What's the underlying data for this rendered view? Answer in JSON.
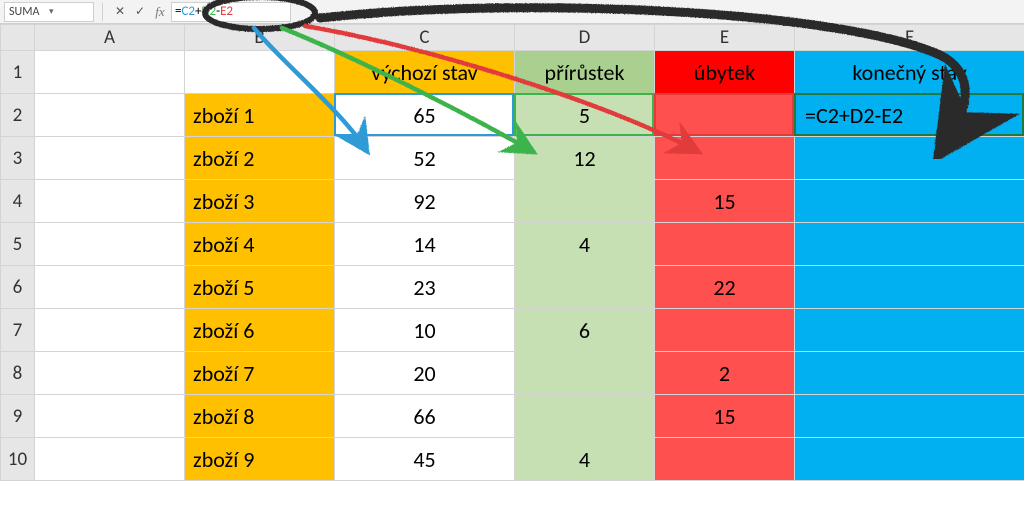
{
  "formula_bar": {
    "name_box": "SUMA",
    "cancel_icon": "✕",
    "enter_icon": "✓",
    "fx_label": "fx",
    "formula": "=C2+D2-E2",
    "tokens": {
      "eq": "=",
      "c2": "C2",
      "plus": "+",
      "d2": "D2",
      "minus": "-",
      "e2": "E2"
    }
  },
  "colors": {
    "header_orange": "#ffc000",
    "header_green": "#a9d08e",
    "header_red": "#ff0000",
    "header_cyan": "#00b0f0",
    "data_orange": "#ffc000",
    "data_green": "#c6e0b4",
    "data_red": "#ff5050",
    "data_cyan": "#00b0f0",
    "ref_blue": "#2e9bd6",
    "ref_green": "#3cb44b",
    "ref_red": "#e23b3b",
    "chalk_black": "#2b2b2b"
  },
  "columns": [
    "A",
    "B",
    "C",
    "D",
    "E",
    "F"
  ],
  "headers": {
    "C": "výchozí stav",
    "D": "přírůstek",
    "E": "úbytek",
    "F": "konečný stav"
  },
  "rows": [
    {
      "n": 1
    },
    {
      "n": 2,
      "B": "zboží 1",
      "C": "65",
      "D": "5",
      "E": "",
      "F": "=C2+D2-E2"
    },
    {
      "n": 3,
      "B": "zboží 2",
      "C": "52",
      "D": "12",
      "E": "",
      "F": ""
    },
    {
      "n": 4,
      "B": "zboží 3",
      "C": "92",
      "D": "",
      "E": "15",
      "F": ""
    },
    {
      "n": 5,
      "B": "zboží 4",
      "C": "14",
      "D": "4",
      "E": "",
      "F": ""
    },
    {
      "n": 6,
      "B": "zboží 5",
      "C": "23",
      "D": "",
      "E": "22",
      "F": ""
    },
    {
      "n": 7,
      "B": "zboží 6",
      "C": "10",
      "D": "6",
      "E": "",
      "F": ""
    },
    {
      "n": 8,
      "B": "zboží 7",
      "C": "20",
      "D": "",
      "E": "2",
      "F": ""
    },
    {
      "n": 9,
      "B": "zboží 8",
      "C": "66",
      "D": "",
      "E": "15",
      "F": ""
    },
    {
      "n": 10,
      "B": "zboží 9",
      "C": "45",
      "D": "4",
      "E": "",
      "F": ""
    }
  ],
  "annotations": {
    "circle_around_formula": true,
    "arrows": [
      "blue_to_C2",
      "green_to_D2",
      "red_to_E2",
      "black_to_F2"
    ]
  }
}
